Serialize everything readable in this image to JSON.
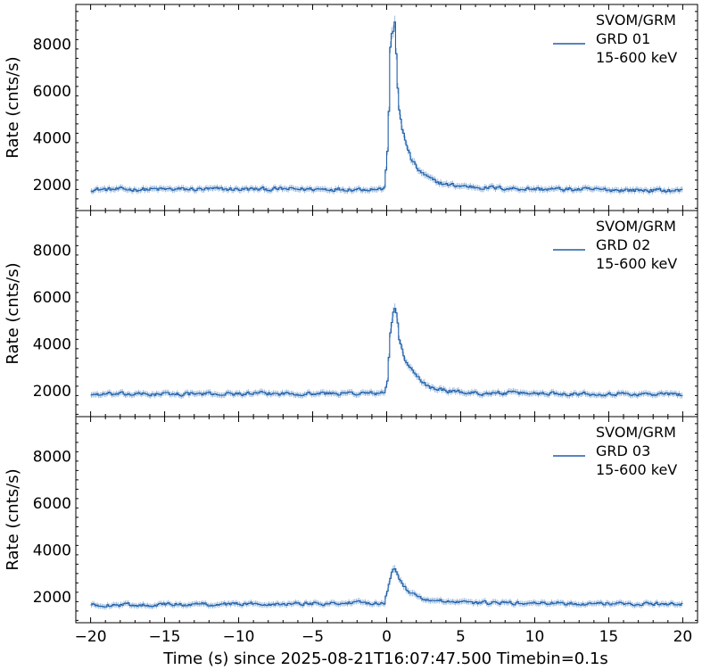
{
  "chart_data": [
    {
      "type": "line",
      "panel": 1,
      "ylabel": "Rate (cnts/s)",
      "xlim": [
        -21.0,
        21.0
      ],
      "ylim": [
        900,
        9700
      ],
      "yticks": [
        2000,
        4000,
        6000,
        8000
      ],
      "legend": {
        "location": "top-right",
        "lines": [
          "SVOM/GRM",
          "GRD 01",
          "15-600 keV"
        ]
      },
      "series": [
        {
          "detector": "GRD 01",
          "color": "#1f5fa8",
          "baseline": 1800,
          "timebin_s": 0.1,
          "x_range": [
            -20.0,
            19.9
          ],
          "profile_x": [
            -20,
            -0.2,
            0.0,
            0.1,
            0.2,
            0.3,
            0.4,
            0.5,
            0.6,
            0.7,
            0.8,
            1.0,
            1.3,
            1.6,
            2.0,
            2.5,
            3.0,
            4.0,
            5.0,
            6.0,
            8.0,
            10.0,
            19.9
          ],
          "profile_y": [
            1800,
            1820,
            3500,
            5200,
            7800,
            8300,
            8500,
            8900,
            7600,
            6200,
            5300,
            4300,
            3700,
            3100,
            2700,
            2400,
            2200,
            2000,
            1950,
            1900,
            1850,
            1820,
            1750
          ],
          "noise_amplitude": 130
        }
      ]
    },
    {
      "type": "line",
      "panel": 2,
      "ylabel": "Rate (cnts/s)",
      "xlim": [
        -21.0,
        21.0
      ],
      "ylim": [
        900,
        9700
      ],
      "yticks": [
        2000,
        4000,
        6000,
        8000
      ],
      "legend": {
        "location": "top-right",
        "lines": [
          "SVOM/GRM",
          "GRD 02",
          "15-600 keV"
        ]
      },
      "series": [
        {
          "detector": "GRD 02",
          "color": "#1f5fa8",
          "baseline": 1900,
          "timebin_s": 0.1,
          "x_range": [
            -20.0,
            19.9
          ],
          "profile_x": [
            -20,
            -0.2,
            0.0,
            0.2,
            0.4,
            0.5,
            0.6,
            0.7,
            0.8,
            1.0,
            1.3,
            1.6,
            2.0,
            2.5,
            3.0,
            4.0,
            5.0,
            6.0,
            10.0,
            19.9
          ],
          "profile_y": [
            1850,
            1900,
            2400,
            4500,
            5400,
            5600,
            5300,
            4800,
            4200,
            3700,
            3200,
            2900,
            2600,
            2300,
            2150,
            2000,
            1950,
            1900,
            1900,
            1850
          ],
          "noise_amplitude": 120
        }
      ]
    },
    {
      "type": "line",
      "panel": 3,
      "ylabel": "Rate (cnts/s)",
      "xlabel": "Time (s) since 2025-08-21T16:07:47.500 Timebin=0.1s",
      "xlim": [
        -21.0,
        21.0
      ],
      "ylim": [
        900,
        9700
      ],
      "xticks": [
        -20,
        -15,
        -10,
        -5,
        0,
        5,
        10,
        15,
        20
      ],
      "yticks": [
        2000,
        4000,
        6000,
        8000
      ],
      "legend": {
        "location": "top-right",
        "lines": [
          "SVOM/GRM",
          "GRD 03",
          "15-600 keV"
        ]
      },
      "series": [
        {
          "detector": "GRD 03",
          "color": "#1f5fa8",
          "baseline": 1700,
          "timebin_s": 0.1,
          "x_range": [
            -20.0,
            19.9
          ],
          "profile_x": [
            -20,
            -0.2,
            0.0,
            0.2,
            0.4,
            0.6,
            0.8,
            1.0,
            1.5,
            2.0,
            3.0,
            5.0,
            19.9
          ],
          "profile_y": [
            1650,
            1750,
            2300,
            2900,
            3200,
            3100,
            2800,
            2500,
            2200,
            2000,
            1850,
            1750,
            1700
          ],
          "noise_amplitude": 110
        }
      ]
    }
  ]
}
